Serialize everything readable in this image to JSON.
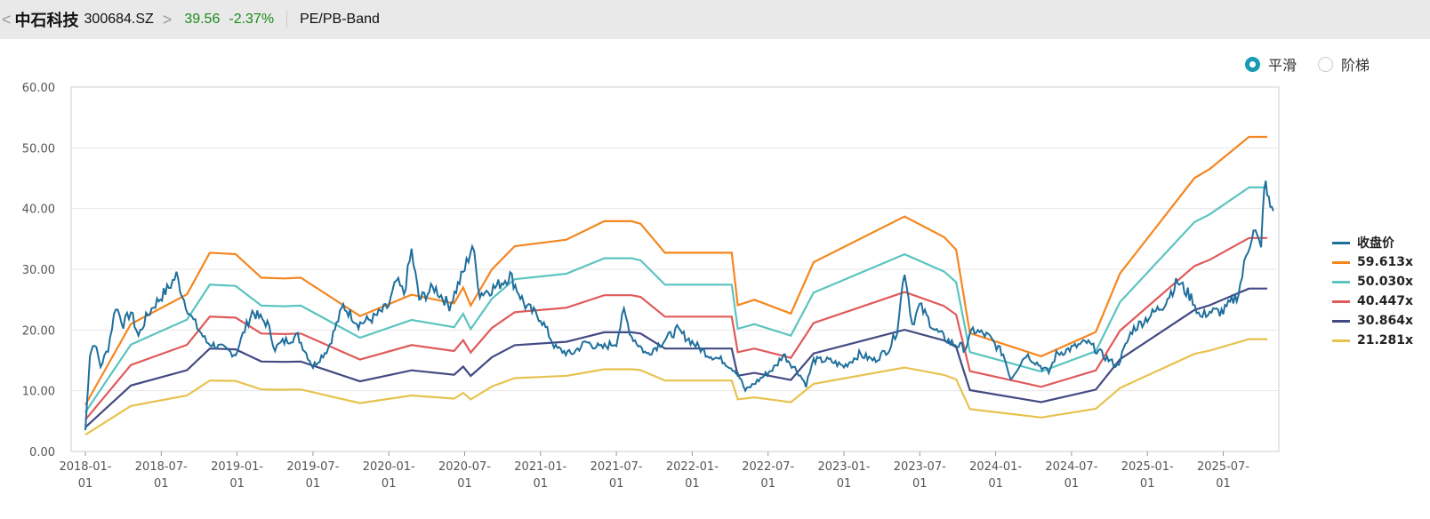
{
  "header": {
    "back": "<",
    "name": "中石科技",
    "code": "300684.SZ",
    "forward": ">",
    "price": "39.56",
    "change": "-2.37%",
    "title": "PE/PB-Band"
  },
  "mode": {
    "options": [
      "平滑",
      "阶梯"
    ],
    "selected": "平滑"
  },
  "colors": {
    "price": "#1f6f9c",
    "bands": [
      "#f5861f",
      "#5bc4c0",
      "#e05a5a",
      "#434a83",
      "#e8c24e"
    ]
  },
  "chart_data": {
    "type": "line",
    "title": "PE/PB-Band",
    "ylim": [
      0,
      60
    ],
    "yticks": [
      "0.00",
      "10.00",
      "20.00",
      "30.00",
      "40.00",
      "50.00",
      "60.00"
    ],
    "xticks": [
      {
        "t": 2018.0,
        "l1": "2018-01-",
        "l2": "01"
      },
      {
        "t": 2018.5,
        "l1": "2018-07-",
        "l2": "01"
      },
      {
        "t": 2019.0,
        "l1": "2019-01-",
        "l2": "01"
      },
      {
        "t": 2019.5,
        "l1": "2019-07-",
        "l2": "01"
      },
      {
        "t": 2020.0,
        "l1": "2020-01-",
        "l2": "01"
      },
      {
        "t": 2020.5,
        "l1": "2020-07-",
        "l2": "01"
      },
      {
        "t": 2021.0,
        "l1": "2021-01-",
        "l2": "01"
      },
      {
        "t": 2021.5,
        "l1": "2021-07-",
        "l2": "01"
      },
      {
        "t": 2022.0,
        "l1": "2022-01-",
        "l2": "01"
      },
      {
        "t": 2022.5,
        "l1": "2022-07-",
        "l2": "01"
      },
      {
        "t": 2023.0,
        "l1": "2023-01-",
        "l2": "01"
      },
      {
        "t": 2023.5,
        "l1": "2023-07-",
        "l2": "01"
      },
      {
        "t": 2024.0,
        "l1": "2024-01-",
        "l2": "01"
      },
      {
        "t": 2024.5,
        "l1": "2024-07-",
        "l2": "01"
      },
      {
        "t": 2025.0,
        "l1": "2025-01-",
        "l2": "01"
      },
      {
        "t": 2025.5,
        "l1": "2025-07-",
        "l2": "01"
      }
    ],
    "xlim": [
      2017.91,
      2025.88
    ],
    "legend": [
      "收盘价",
      "59.613x",
      "50.030x",
      "40.447x",
      "30.864x",
      "21.281x"
    ],
    "multiples": [
      59.613,
      50.03,
      40.447,
      30.864,
      21.281
    ],
    "eps": [
      [
        2018.0,
        0.129
      ],
      [
        2018.3,
        0.352
      ],
      [
        2018.67,
        0.434
      ],
      [
        2018.82,
        0.549
      ],
      [
        2018.99,
        0.545
      ],
      [
        2019.16,
        0.48
      ],
      [
        2019.31,
        0.478
      ],
      [
        2019.42,
        0.48
      ],
      [
        2019.81,
        0.374
      ],
      [
        2020.15,
        0.433
      ],
      [
        2020.43,
        0.409
      ],
      [
        2020.49,
        0.453
      ],
      [
        2020.54,
        0.403
      ],
      [
        2020.68,
        0.503
      ],
      [
        2020.83,
        0.567
      ],
      [
        2021.17,
        0.585
      ],
      [
        2021.42,
        0.636
      ],
      [
        2021.6,
        0.636
      ],
      [
        2021.66,
        0.629
      ],
      [
        2021.82,
        0.549
      ],
      [
        2022.26,
        0.549
      ],
      [
        2022.3,
        0.404
      ],
      [
        2022.41,
        0.419
      ],
      [
        2022.65,
        0.381
      ],
      [
        2022.8,
        0.523
      ],
      [
        2023.4,
        0.649
      ],
      [
        2023.66,
        0.592
      ],
      [
        2023.74,
        0.557
      ],
      [
        2023.83,
        0.327
      ],
      [
        2024.3,
        0.263
      ],
      [
        2024.66,
        0.33
      ],
      [
        2024.82,
        0.492
      ],
      [
        2025.31,
        0.755
      ],
      [
        2025.41,
        0.78
      ],
      [
        2025.67,
        0.869
      ],
      [
        2025.79,
        0.869
      ]
    ],
    "price": [
      [
        2018.0,
        3.5
      ],
      [
        2018.03,
        16
      ],
      [
        2018.06,
        18
      ],
      [
        2018.1,
        14
      ],
      [
        2018.15,
        17
      ],
      [
        2018.2,
        24
      ],
      [
        2018.25,
        21
      ],
      [
        2018.3,
        23
      ],
      [
        2018.35,
        19
      ],
      [
        2018.4,
        22
      ],
      [
        2018.45,
        24
      ],
      [
        2018.55,
        27
      ],
      [
        2018.6,
        29
      ],
      [
        2018.65,
        25
      ],
      [
        2018.7,
        22
      ],
      [
        2018.75,
        20
      ],
      [
        2018.8,
        18
      ],
      [
        2018.9,
        17
      ],
      [
        2018.99,
        16
      ],
      [
        2019.05,
        20
      ],
      [
        2019.1,
        23
      ],
      [
        2019.2,
        21
      ],
      [
        2019.25,
        17
      ],
      [
        2019.3,
        18
      ],
      [
        2019.4,
        19
      ],
      [
        2019.5,
        14
      ],
      [
        2019.6,
        17
      ],
      [
        2019.7,
        24
      ],
      [
        2019.8,
        21
      ],
      [
        2019.9,
        22
      ],
      [
        2020.0,
        24
      ],
      [
        2020.05,
        28
      ],
      [
        2020.1,
        26
      ],
      [
        2020.15,
        33
      ],
      [
        2020.2,
        25
      ],
      [
        2020.3,
        27
      ],
      [
        2020.4,
        24
      ],
      [
        2020.5,
        30
      ],
      [
        2020.55,
        34
      ],
      [
        2020.6,
        26
      ],
      [
        2020.7,
        27
      ],
      [
        2020.8,
        29
      ],
      [
        2020.9,
        24
      ],
      [
        2021.0,
        22
      ],
      [
        2021.1,
        17
      ],
      [
        2021.2,
        16
      ],
      [
        2021.3,
        18
      ],
      [
        2021.4,
        17
      ],
      [
        2021.5,
        18
      ],
      [
        2021.55,
        23
      ],
      [
        2021.6,
        19
      ],
      [
        2021.7,
        16
      ],
      [
        2021.8,
        18
      ],
      [
        2021.9,
        20
      ],
      [
        2022.0,
        18
      ],
      [
        2022.1,
        16
      ],
      [
        2022.2,
        15
      ],
      [
        2022.3,
        13
      ],
      [
        2022.35,
        10
      ],
      [
        2022.45,
        12
      ],
      [
        2022.55,
        14
      ],
      [
        2022.6,
        16
      ],
      [
        2022.7,
        13
      ],
      [
        2022.75,
        11
      ],
      [
        2022.8,
        15
      ],
      [
        2022.9,
        15
      ],
      [
        2023.0,
        14
      ],
      [
        2023.1,
        16
      ],
      [
        2023.2,
        15
      ],
      [
        2023.3,
        17
      ],
      [
        2023.35,
        20
      ],
      [
        2023.4,
        30
      ],
      [
        2023.45,
        21
      ],
      [
        2023.5,
        24
      ],
      [
        2023.6,
        20
      ],
      [
        2023.7,
        18
      ],
      [
        2023.8,
        17
      ],
      [
        2023.85,
        20
      ],
      [
        2023.95,
        19
      ],
      [
        2024.05,
        16
      ],
      [
        2024.1,
        12
      ],
      [
        2024.2,
        16
      ],
      [
        2024.25,
        15
      ],
      [
        2024.35,
        13
      ],
      [
        2024.4,
        16
      ],
      [
        2024.5,
        17
      ],
      [
        2024.6,
        18
      ],
      [
        2024.7,
        16
      ],
      [
        2024.8,
        14
      ],
      [
        2024.9,
        20
      ],
      [
        2025.0,
        22
      ],
      [
        2025.1,
        24
      ],
      [
        2025.2,
        28
      ],
      [
        2025.3,
        25
      ],
      [
        2025.35,
        22
      ],
      [
        2025.4,
        23
      ],
      [
        2025.5,
        23
      ],
      [
        2025.6,
        26
      ],
      [
        2025.65,
        32
      ],
      [
        2025.7,
        37
      ],
      [
        2025.75,
        33
      ],
      [
        2025.77,
        44.5
      ],
      [
        2025.8,
        41
      ],
      [
        2025.83,
        39.6
      ]
    ]
  }
}
